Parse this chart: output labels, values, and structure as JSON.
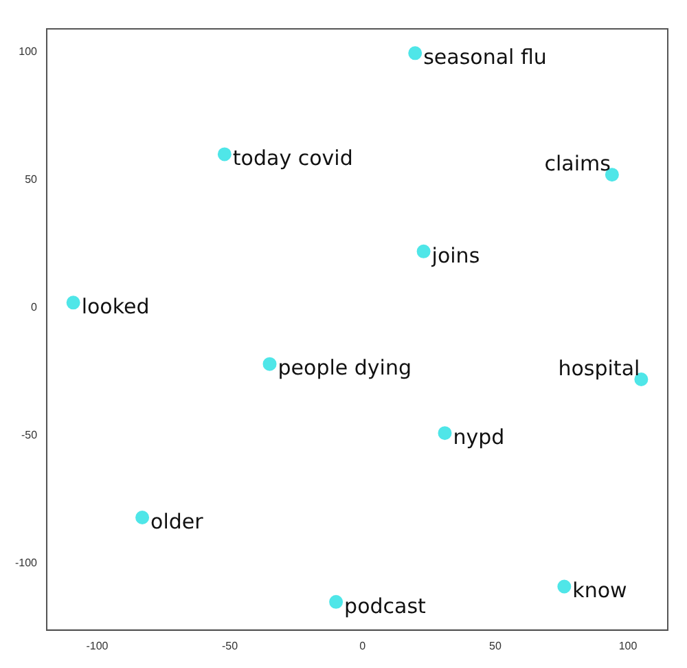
{
  "chart_data": {
    "type": "scatter",
    "x": [
      19.8,
      -52,
      94,
      23,
      -109,
      -35,
      105,
      31,
      -83,
      -10,
      76
    ],
    "values": [
      99.5,
      60,
      52,
      22,
      2,
      -22,
      -28,
      -49,
      -82,
      -115,
      -109
    ],
    "color": "#4fe6e8",
    "marker": "circle",
    "xlim": [
      -119,
      115
    ],
    "ylim": [
      -126,
      109
    ],
    "xticks": [
      -100,
      -50,
      0,
      50,
      100
    ],
    "yticks": [
      -100,
      -50,
      0,
      50,
      100
    ],
    "grid": false,
    "legend": false,
    "annotations": [
      {
        "text": "seasonal flu",
        "x": 19.8,
        "y": 99.5
      },
      {
        "text": "today covid",
        "x": -52,
        "y": 60
      },
      {
        "text": "claims",
        "x": 94,
        "y": 52
      },
      {
        "text": "joins",
        "x": 23,
        "y": 22
      },
      {
        "text": "looked",
        "x": -109,
        "y": 2
      },
      {
        "text": "people dying",
        "x": -35,
        "y": -22
      },
      {
        "text": "hospital",
        "x": 105,
        "y": -28
      },
      {
        "text": "nypd",
        "x": 31,
        "y": -49
      },
      {
        "text": "older",
        "x": -83,
        "y": -82
      },
      {
        "text": "podcast",
        "x": -10,
        "y": -115
      },
      {
        "text": "know",
        "x": 76,
        "y": -109
      }
    ]
  }
}
